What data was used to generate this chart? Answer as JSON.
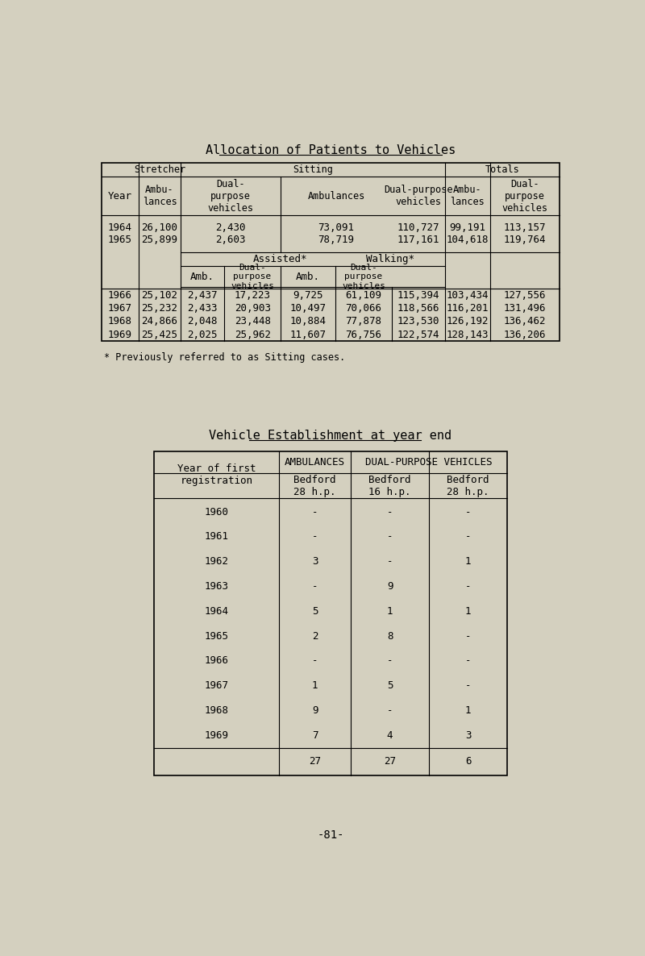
{
  "page_bg": "#d4d0bf",
  "title1": "Allocation of Patients to Vehicles",
  "title2": "Vehicle Establishment at year end",
  "footnote": "* Previously referred to as Sitting cases.",
  "page_number": "-81-",
  "table2": {
    "years": [
      "1960",
      "1961",
      "1962",
      "1963",
      "1964",
      "1965",
      "1966",
      "1967",
      "1968",
      "1969"
    ],
    "bedford_28_amb": [
      "-",
      "-",
      "3",
      "-",
      "5",
      "2",
      "-",
      "1",
      "9",
      "7"
    ],
    "bedford_16_dual": [
      "-",
      "-",
      "-",
      "9",
      "1",
      "8",
      "-",
      "5",
      "-",
      "4"
    ],
    "bedford_28_dual": [
      "-",
      "-",
      "1",
      "-",
      "1",
      "-",
      "-",
      "-",
      "1",
      "3"
    ],
    "totals": [
      "27",
      "27",
      "6"
    ]
  }
}
